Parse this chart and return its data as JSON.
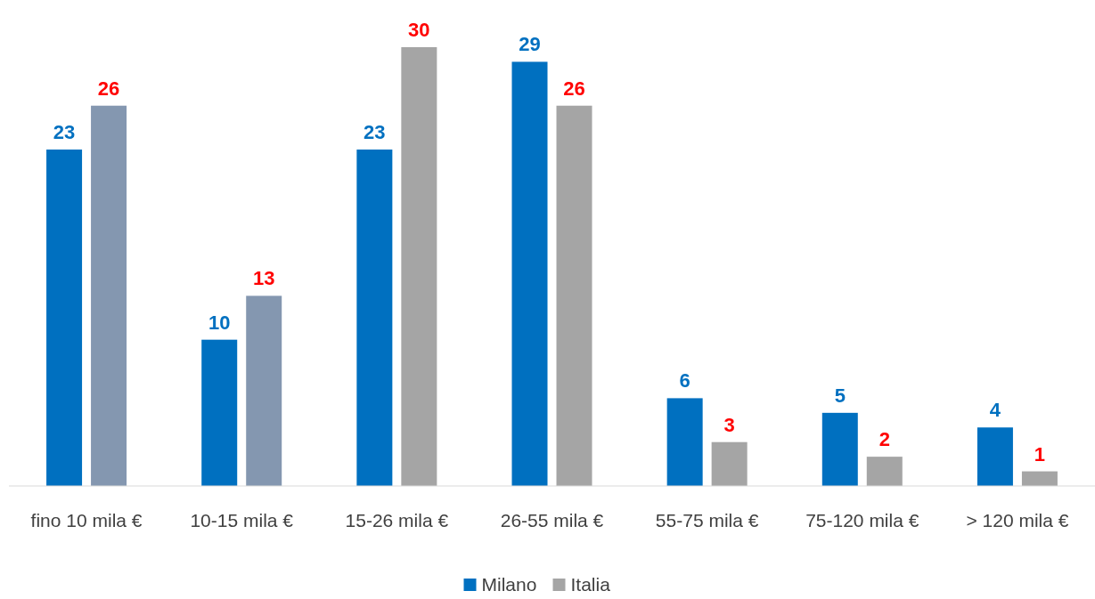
{
  "chart_data": {
    "type": "bar",
    "categories": [
      "fino 10 mila €",
      "10-15 mila €",
      "15-26 mila €",
      "26-55 mila €",
      "55-75 mila €",
      "75-120 mila €",
      "> 120 mila €"
    ],
    "series": [
      {
        "name": "Milano",
        "color": "#0070c0",
        "values": [
          23,
          10,
          23,
          29,
          6,
          5,
          4
        ]
      },
      {
        "name": "Italia",
        "color": "#a5a5a5",
        "colors": [
          "#8497b0",
          "#8497b0",
          "#a5a5a5",
          "#a5a5a5",
          "#a5a5a5",
          "#a5a5a5",
          "#a5a5a5"
        ],
        "values": [
          26,
          13,
          30,
          26,
          3,
          2,
          1
        ]
      }
    ],
    "data_labels": true,
    "legend": "bottom"
  }
}
